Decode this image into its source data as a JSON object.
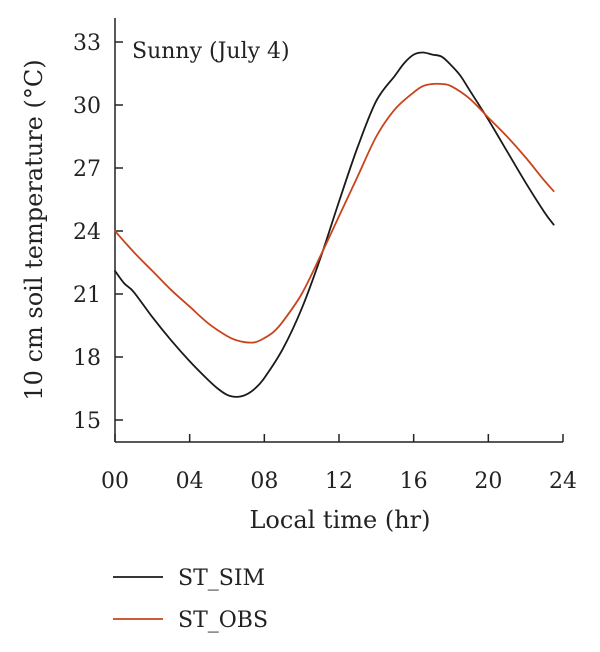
{
  "chart_data": {
    "type": "line",
    "annotation": "Sunny (July 4)",
    "xlabel": "Local time (hr)",
    "ylabel": "10 cm soil temperature (°C)",
    "xlim": [
      0,
      24
    ],
    "ylim": [
      14,
      33.5
    ],
    "xticks": [
      0,
      4,
      8,
      12,
      16,
      20,
      24
    ],
    "xtick_labels": [
      "00",
      "04",
      "08",
      "12",
      "16",
      "20",
      "24"
    ],
    "yticks": [
      15,
      18,
      21,
      24,
      27,
      30,
      33
    ],
    "ytick_labels": [
      "15",
      "18",
      "21",
      "24",
      "27",
      "30",
      "33"
    ],
    "grid": false,
    "legend_position": "bottom-left",
    "series": [
      {
        "name": "ST_SIM",
        "color": "#1a1a1a",
        "x": [
          0,
          0.5,
          1,
          2,
          3,
          4,
          5,
          5.5,
          6,
          6.5,
          7,
          7.5,
          8,
          9,
          10,
          11,
          12,
          13,
          14,
          15,
          15.5,
          16,
          16.5,
          17,
          17.5,
          18,
          18.5,
          19,
          20,
          21,
          22,
          23,
          23.5
        ],
        "y": [
          22.1,
          21.5,
          21.1,
          19.9,
          18.8,
          17.8,
          16.9,
          16.5,
          16.2,
          16.1,
          16.2,
          16.5,
          17.0,
          18.4,
          20.3,
          22.7,
          25.4,
          28.0,
          30.2,
          31.4,
          32.0,
          32.4,
          32.5,
          32.4,
          32.3,
          31.9,
          31.4,
          30.7,
          29.3,
          27.8,
          26.3,
          24.9,
          24.3
        ]
      },
      {
        "name": "ST_OBS",
        "color": "#c8441c",
        "x": [
          0,
          1,
          2,
          3,
          4,
          5,
          6,
          6.5,
          7,
          7.5,
          8,
          8.5,
          9,
          10,
          11,
          12,
          13,
          14,
          15,
          16,
          16.5,
          17,
          17.5,
          18,
          19,
          20,
          21,
          22,
          23,
          23.5
        ],
        "y": [
          24.0,
          23.0,
          22.1,
          21.2,
          20.4,
          19.6,
          19.0,
          18.8,
          18.7,
          18.7,
          18.9,
          19.2,
          19.7,
          21.0,
          22.8,
          24.7,
          26.6,
          28.5,
          29.8,
          30.6,
          30.9,
          31.0,
          31.0,
          30.9,
          30.3,
          29.4,
          28.5,
          27.5,
          26.4,
          25.9
        ]
      }
    ]
  }
}
